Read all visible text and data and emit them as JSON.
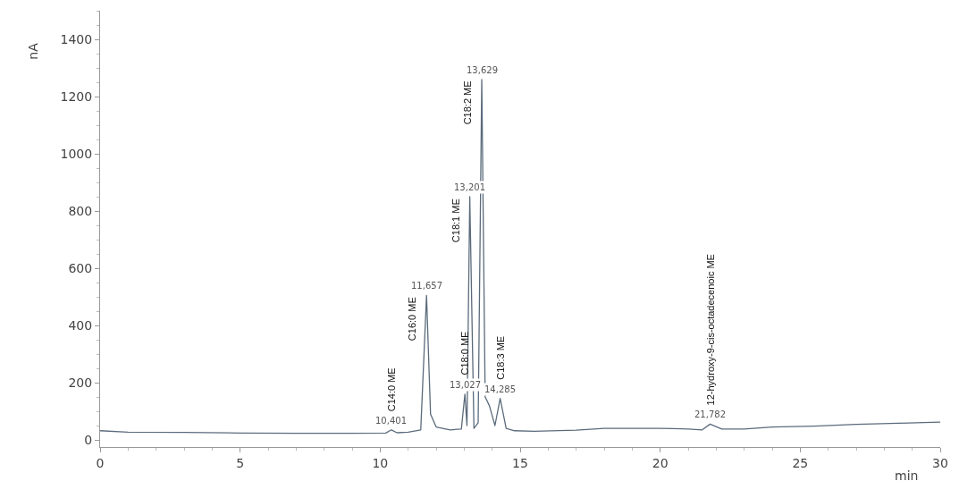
{
  "chart_data": {
    "type": "line",
    "xlabel": "min",
    "ylabel": "nA",
    "x": [
      0,
      1,
      3,
      5,
      7,
      9,
      10.2,
      10.401,
      10.6,
      11.0,
      11.45,
      11.657,
      11.8,
      12.0,
      12.5,
      12.9,
      13.027,
      13.1,
      13.201,
      13.35,
      13.5,
      13.629,
      13.75,
      13.9,
      14.1,
      14.285,
      14.5,
      14.8,
      15.5,
      17,
      18,
      20,
      21,
      21.5,
      21.782,
      22.2,
      23,
      24,
      25.5,
      27,
      28.5,
      30
    ],
    "series": [
      {
        "color": "#5b6b7c",
        "values": [
          32,
          27,
          26,
          24,
          23,
          23,
          24,
          35,
          25,
          27,
          35,
          505,
          90,
          45,
          35,
          38,
          160,
          50,
          850,
          40,
          60,
          1260,
          150,
          120,
          50,
          145,
          40,
          32,
          30,
          34,
          40,
          40,
          38,
          35,
          55,
          38,
          38,
          45,
          48,
          54,
          58,
          62
        ]
      }
    ],
    "xlim": [
      0,
      30
    ],
    "ylim": [
      -25,
      1500
    ],
    "xticks": [
      0,
      5,
      10,
      15,
      20,
      25,
      30
    ],
    "yticks": [
      0,
      200,
      400,
      600,
      800,
      1000,
      1200,
      1400
    ],
    "legend": false,
    "marker": "none",
    "line_style": "solid",
    "annotations": [
      {
        "text": "10,401",
        "x": 10.401,
        "y": 35
      },
      {
        "text": "C14:0 ME",
        "x": 10.401,
        "y": 35
      },
      {
        "text": "11,657",
        "x": 11.657,
        "y": 505
      },
      {
        "text": "C16:0 ME",
        "x": 11.657,
        "y": 505
      },
      {
        "text": "13,027",
        "x": 13.027,
        "y": 160
      },
      {
        "text": "C18:0 ME",
        "x": 13.027,
        "y": 160
      },
      {
        "text": "13,201",
        "x": 13.201,
        "y": 850
      },
      {
        "text": "C18:1 ME",
        "x": 13.201,
        "y": 850
      },
      {
        "text": "13,629",
        "x": 13.629,
        "y": 1260
      },
      {
        "text": "C18:2 ME",
        "x": 13.629,
        "y": 1260
      },
      {
        "text": "14,285",
        "x": 14.285,
        "y": 145
      },
      {
        "text": "C18:3 ME",
        "x": 14.285,
        "y": 145
      },
      {
        "text": "21,782",
        "x": 21.782,
        "y": 55
      },
      {
        "text": "12-hydroxy-9-cis-octadecenoic ME",
        "x": 21.782,
        "y": 55
      }
    ]
  }
}
